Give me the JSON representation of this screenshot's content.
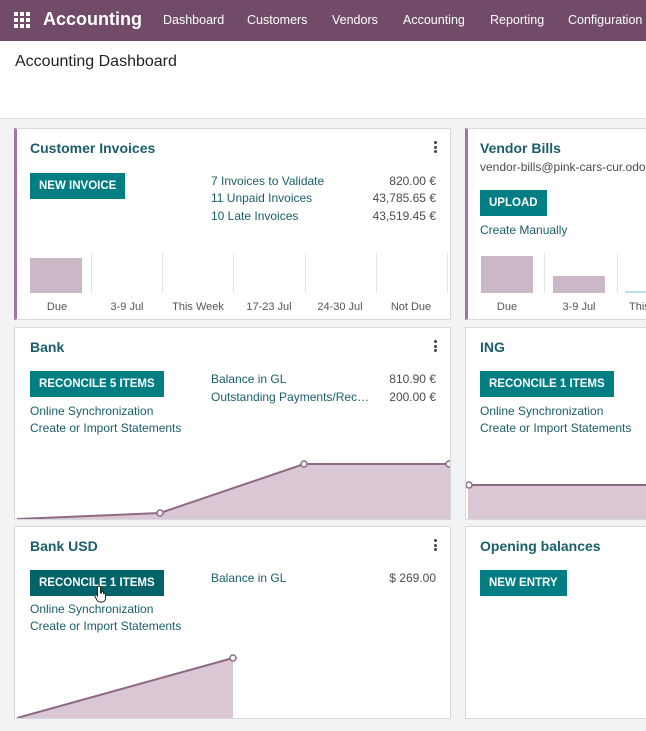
{
  "topbar": {
    "brand": "Accounting",
    "menu": [
      "Dashboard",
      "Customers",
      "Vendors",
      "Accounting",
      "Reporting",
      "Configuration"
    ]
  },
  "page": {
    "title": "Accounting Dashboard"
  },
  "cards": {
    "customer_invoices": {
      "title": "Customer Invoices",
      "button": "NEW INVOICE",
      "stats": [
        {
          "label": "7 Invoices to Validate",
          "value": "820.00 €"
        },
        {
          "label": "11 Unpaid Invoices",
          "value": "43,785.65 €"
        },
        {
          "label": "10 Late Invoices",
          "value": "43,519.45 €"
        }
      ],
      "chart_labels": [
        "Due",
        "3-9 Jul",
        "This Week",
        "17-23 Jul",
        "24-30 Jul",
        "Not Due"
      ],
      "chart_values": [
        1,
        0,
        0,
        0,
        0,
        0
      ]
    },
    "vendor_bills": {
      "title": "Vendor Bills",
      "email": "vendor-bills@pink-cars-cur.odoo.",
      "button": "UPLOAD",
      "link": "Create Manually",
      "chart_labels": [
        "Due",
        "3-9 Jul",
        "This W"
      ],
      "chart_values": [
        1,
        0.45,
        0.05
      ]
    },
    "bank": {
      "title": "Bank",
      "button": "RECONCILE 5 ITEMS",
      "links": [
        "Online Synchronization",
        "Create or Import Statements"
      ],
      "stats": [
        {
          "label": "Balance in GL",
          "value": "810.90 €"
        },
        {
          "label": "Outstanding Payments/Rec…",
          "value": "200.00 €"
        }
      ]
    },
    "ing": {
      "title": "ING",
      "button": "RECONCILE 1 ITEMS",
      "links": [
        "Online Synchronization",
        "Create or Import Statements"
      ]
    },
    "bank_usd": {
      "title": "Bank USD",
      "button": "RECONCILE 1 ITEMS",
      "links": [
        "Online Synchronization",
        "Create or Import Statements"
      ],
      "stats": [
        {
          "label": "Balance in GL",
          "value": "$ 269.00"
        }
      ]
    },
    "opening_balances": {
      "title": "Opening balances",
      "button": "NEW ENTRY"
    }
  },
  "colors": {
    "brand_bar": "#714b67",
    "button": "#017e84",
    "title": "#1a5e6a",
    "chart_fill": "#d9c7d3",
    "chart_line": "#8f6a85"
  }
}
